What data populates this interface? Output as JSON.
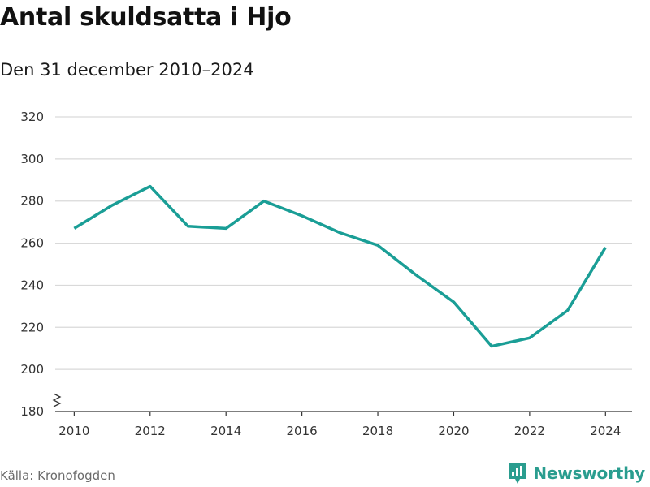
{
  "chart_data": {
    "type": "line",
    "title": "Antal skuldsatta i Hjo",
    "subtitle": "Den 31 december 2010–2024",
    "xlabel": "",
    "ylabel": "",
    "x": [
      2010,
      2011,
      2012,
      2013,
      2014,
      2015,
      2016,
      2017,
      2018,
      2019,
      2020,
      2021,
      2022,
      2023,
      2024
    ],
    "series": [
      {
        "name": "Antal skuldsatta",
        "values": [
          267,
          278,
          287,
          268,
          267,
          280,
          273,
          265,
          259,
          245,
          232,
          211,
          215,
          228,
          258
        ]
      }
    ],
    "xticks": [
      "2010",
      "2012",
      "2014",
      "2016",
      "2018",
      "2020",
      "2022",
      "2024"
    ],
    "yticks": [
      "180",
      "200",
      "220",
      "240",
      "260",
      "280",
      "300",
      "320"
    ],
    "ylim": [
      180,
      320
    ],
    "xlim": [
      2009.5,
      2024.7
    ],
    "grid": true,
    "line_color": "#1a9e96"
  },
  "footer": {
    "source": "Källa: Kronofogden",
    "brand": "Newsworthy",
    "brand_icon": "newsworthy-logo-icon",
    "brand_color": "#2a9d8f"
  }
}
